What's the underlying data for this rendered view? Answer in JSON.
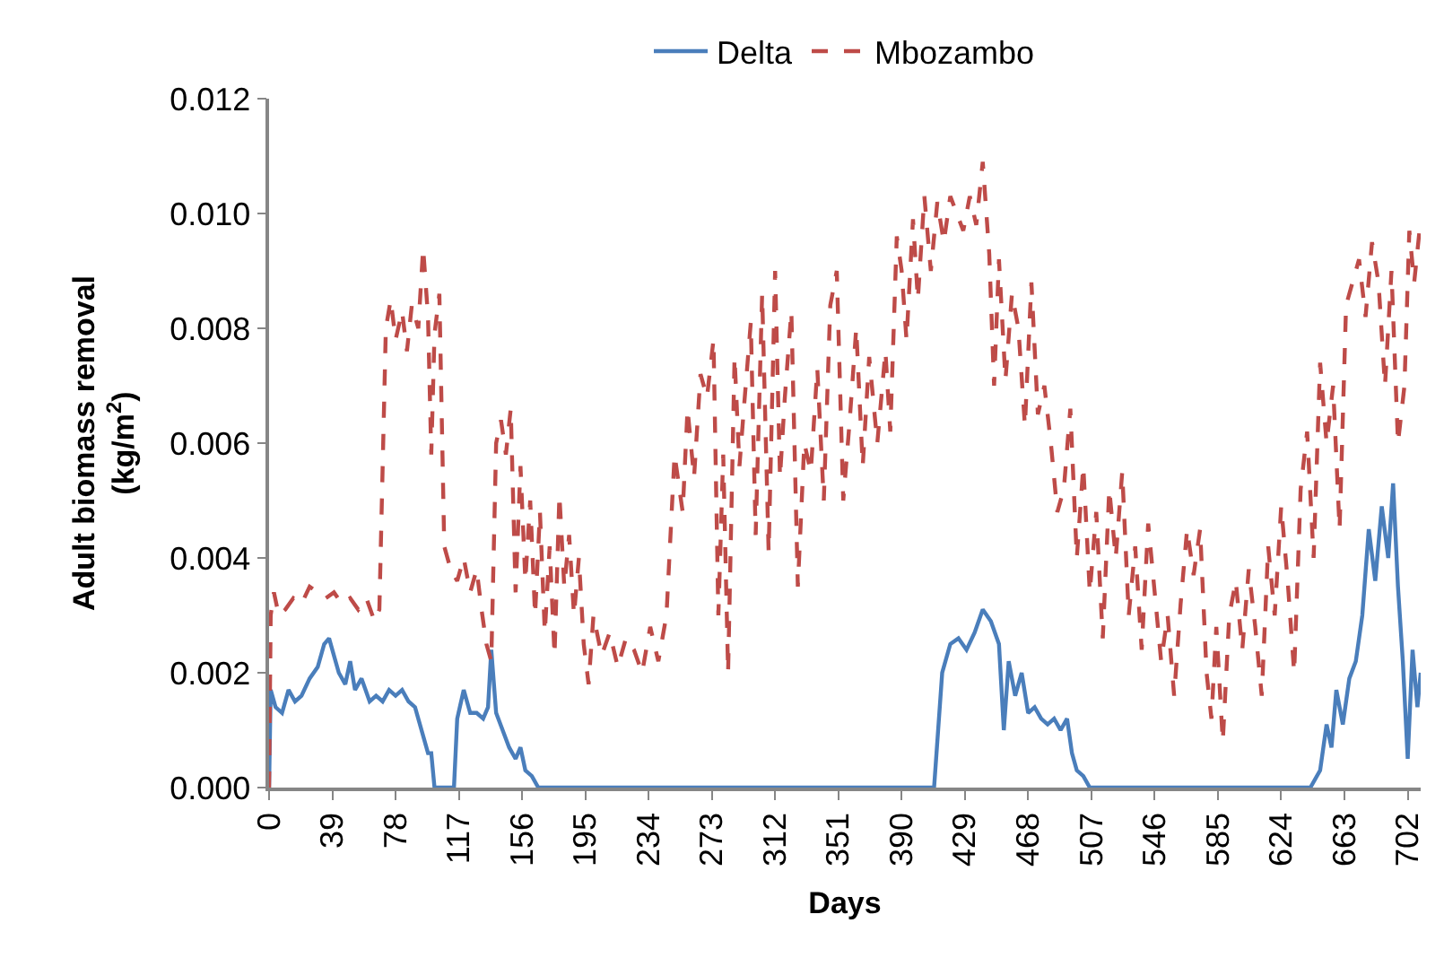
{
  "chart_data": {
    "type": "line",
    "xlabel": "Days",
    "ylabel": "Adult biomass removal\n(kg/m$^{2}$)",
    "xlim": [
      0,
      710
    ],
    "xticks": [
      0,
      39,
      78,
      117,
      156,
      195,
      234,
      273,
      312,
      351,
      390,
      429,
      468,
      507,
      546,
      585,
      624,
      663,
      702
    ],
    "ylim": [
      0,
      0.012
    ],
    "yticks": [
      {
        "value": 0,
        "label": "0.000"
      },
      {
        "value": 0.002,
        "label": "0.002"
      },
      {
        "value": 0.004,
        "label": "0.004"
      },
      {
        "value": 0.006,
        "label": "0.006"
      },
      {
        "value": 0.008,
        "label": "0.008"
      },
      {
        "value": 0.01,
        "label": "0.010"
      },
      {
        "value": 0.012,
        "label": "0.012"
      }
    ],
    "legend": "top",
    "marker": "none",
    "series": [
      {
        "name": "Delta",
        "color": "#4a7ebb",
        "line_style": "solid",
        "x": [
          0,
          1,
          4,
          8,
          12,
          16,
          20,
          25,
          30,
          34,
          37,
          40,
          43,
          47,
          50,
          53,
          57,
          62,
          66,
          70,
          74,
          78,
          82,
          86,
          90,
          95,
          98,
          100,
          102,
          114,
          116,
          120,
          124,
          128,
          132,
          135,
          137,
          140,
          144,
          148,
          152,
          155,
          158,
          162,
          166,
          410,
          415,
          420,
          425,
          430,
          435,
          440,
          445,
          450,
          453,
          456,
          460,
          464,
          468,
          472,
          476,
          480,
          484,
          488,
          492,
          495,
          498,
          502,
          506,
          642,
          648,
          652,
          655,
          658,
          662,
          666,
          670,
          674,
          678,
          682,
          686,
          690,
          693,
          696,
          699,
          702,
          705,
          708,
          710
        ],
        "values": [
          0,
          0.0017,
          0.0014,
          0.0013,
          0.0017,
          0.0015,
          0.0016,
          0.0019,
          0.0021,
          0.0025,
          0.0026,
          0.0023,
          0.002,
          0.0018,
          0.0022,
          0.0017,
          0.0019,
          0.0015,
          0.0016,
          0.0015,
          0.0017,
          0.0016,
          0.0017,
          0.0015,
          0.0014,
          0.0009,
          0.0006,
          0.0006,
          0,
          0,
          0.0012,
          0.0017,
          0.0013,
          0.0013,
          0.0012,
          0.0014,
          0.0024,
          0.0013,
          0.001,
          0.0007,
          0.0005,
          0.0007,
          0.0003,
          0.0002,
          0,
          0,
          0.002,
          0.0025,
          0.0026,
          0.0024,
          0.0027,
          0.0031,
          0.0029,
          0.0025,
          0.001,
          0.0022,
          0.0016,
          0.002,
          0.0013,
          0.0014,
          0.0012,
          0.0011,
          0.0012,
          0.001,
          0.0012,
          0.0006,
          0.0003,
          0.0002,
          0,
          0,
          0.0003,
          0.0011,
          0.0007,
          0.0017,
          0.0011,
          0.0019,
          0.0022,
          0.003,
          0.0045,
          0.0036,
          0.0049,
          0.004,
          0.0053,
          0.0035,
          0.0022,
          0.0005,
          0.0024,
          0.0014,
          0.002
        ]
      },
      {
        "name": "Mbozambo",
        "color": "#be4b48",
        "line_style": "dashed",
        "x": [
          0,
          1,
          3,
          6,
          10,
          15,
          20,
          25,
          30,
          35,
          40,
          45,
          50,
          55,
          60,
          65,
          68,
          72,
          75,
          78,
          82,
          85,
          88,
          92,
          95,
          98,
          100,
          102,
          105,
          108,
          112,
          116,
          120,
          124,
          128,
          131,
          134,
          137,
          140,
          143,
          146,
          149,
          152,
          155,
          158,
          161,
          164,
          167,
          170,
          173,
          176,
          179,
          182,
          185,
          188,
          191,
          194,
          197,
          200,
          205,
          210,
          215,
          220,
          225,
          230,
          235,
          240,
          245,
          250,
          255,
          258,
          262,
          266,
          270,
          274,
          277,
          280,
          283,
          287,
          290,
          293,
          297,
          300,
          304,
          308,
          312,
          315,
          318,
          322,
          326,
          330,
          334,
          338,
          342,
          346,
          350,
          354,
          358,
          362,
          366,
          370,
          375,
          380,
          383,
          387,
          390,
          393,
          397,
          400,
          404,
          408,
          412,
          416,
          420,
          424,
          428,
          432,
          436,
          440,
          444,
          447,
          450,
          454,
          458,
          462,
          466,
          470,
          474,
          478,
          482,
          486,
          490,
          494,
          498,
          502,
          506,
          510,
          514,
          518,
          522,
          526,
          530,
          534,
          538,
          542,
          546,
          550,
          554,
          558,
          562,
          566,
          570,
          574,
          578,
          581,
          584,
          588,
          592,
          596,
          600,
          604,
          608,
          612,
          616,
          620,
          624,
          628,
          632,
          636,
          640,
          644,
          648,
          652,
          656,
          660,
          664,
          668,
          672,
          676,
          680,
          684,
          688,
          692,
          696,
          700,
          703,
          706,
          710
        ],
        "values": [
          0,
          0.003,
          0.0034,
          0.003,
          0.0031,
          0.0033,
          0.0032,
          0.0035,
          0.0034,
          0.0033,
          0.0034,
          0.0032,
          0.0033,
          0.0031,
          0.0033,
          0.0029,
          0.0031,
          0.008,
          0.0085,
          0.0078,
          0.0083,
          0.0076,
          0.0084,
          0.008,
          0.0094,
          0.0082,
          0.0058,
          0.0079,
          0.0086,
          0.0042,
          0.0038,
          0.0036,
          0.004,
          0.0034,
          0.0038,
          0.0031,
          0.0025,
          0.0022,
          0.006,
          0.0064,
          0.0058,
          0.0066,
          0.0034,
          0.0056,
          0.0036,
          0.005,
          0.003,
          0.0048,
          0.0027,
          0.0042,
          0.0023,
          0.0051,
          0.0035,
          0.0044,
          0.003,
          0.004,
          0.0025,
          0.0018,
          0.003,
          0.0023,
          0.0027,
          0.0021,
          0.0026,
          0.0024,
          0.002,
          0.0028,
          0.0022,
          0.003,
          0.0058,
          0.0048,
          0.0066,
          0.0054,
          0.0072,
          0.0068,
          0.0078,
          0.003,
          0.0058,
          0.002,
          0.0075,
          0.0056,
          0.0067,
          0.0081,
          0.0044,
          0.0086,
          0.0041,
          0.009,
          0.0054,
          0.0068,
          0.0083,
          0.0035,
          0.006,
          0.0055,
          0.0073,
          0.005,
          0.0084,
          0.009,
          0.005,
          0.0064,
          0.008,
          0.0056,
          0.0075,
          0.006,
          0.0076,
          0.0062,
          0.0096,
          0.009,
          0.0078,
          0.0099,
          0.0085,
          0.0103,
          0.009,
          0.0102,
          0.0095,
          0.0103,
          0.01,
          0.0097,
          0.0103,
          0.0098,
          0.0109,
          0.0093,
          0.007,
          0.0092,
          0.0071,
          0.0086,
          0.008,
          0.0063,
          0.0088,
          0.0065,
          0.007,
          0.006,
          0.0048,
          0.0052,
          0.0066,
          0.004,
          0.0056,
          0.0034,
          0.0048,
          0.0026,
          0.0052,
          0.004,
          0.0055,
          0.003,
          0.0042,
          0.0024,
          0.0046,
          0.0034,
          0.0022,
          0.003,
          0.0016,
          0.0032,
          0.0045,
          0.0037,
          0.0045,
          0.002,
          0.0012,
          0.0028,
          0.0008,
          0.003,
          0.0036,
          0.0024,
          0.0038,
          0.0028,
          0.0016,
          0.0042,
          0.003,
          0.0049,
          0.0036,
          0.002,
          0.0052,
          0.0062,
          0.004,
          0.0074,
          0.006,
          0.007,
          0.0045,
          0.0084,
          0.0088,
          0.0092,
          0.0082,
          0.0095,
          0.0088,
          0.007,
          0.009,
          0.006,
          0.007,
          0.0097,
          0.0088,
          0.0099
        ]
      }
    ]
  }
}
